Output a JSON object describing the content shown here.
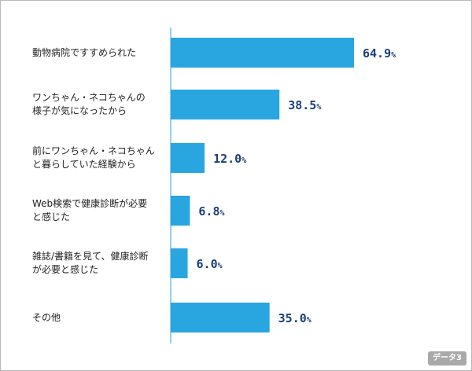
{
  "chart_data": {
    "type": "bar",
    "orientation": "horizontal",
    "categories": [
      "動物病院ですすめられた",
      "ワンちゃん・ネコちゃんの\n様子が気になったから",
      "前にワンちゃん・ネコちゃん\nと暮らしていた経験から",
      "Web検索で健康診断が必要\nと感じた",
      "雑誌/書籍を見て、健康診断\nが必要と感じた",
      "その他"
    ],
    "values": [
      64.9,
      38.5,
      12.0,
      6.8,
      6.0,
      35.0
    ],
    "value_labels": [
      "64.9",
      "38.5",
      "12.0",
      "6.8",
      "6.0",
      "35.0"
    ],
    "unit": "%",
    "xlim": [
      0,
      100
    ],
    "grid": false,
    "colors": {
      "bar": "#29a6df",
      "value_text": "#1b3f7a",
      "axis": "#29a6df"
    }
  },
  "badge": {
    "label": "データ3"
  }
}
